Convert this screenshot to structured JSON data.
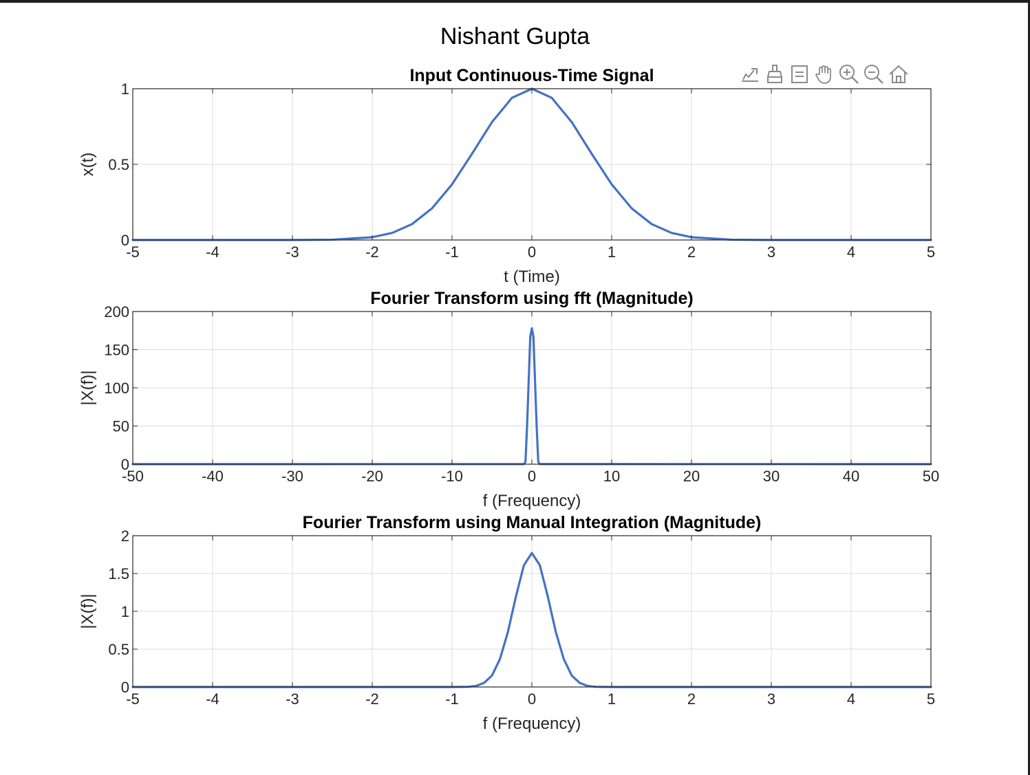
{
  "figure": {
    "title": "Nishant Gupta"
  },
  "toolbar": {
    "items": [
      {
        "name": "export",
        "icon": "export-icon"
      },
      {
        "name": "brush",
        "icon": "brush-icon"
      },
      {
        "name": "data-tips",
        "icon": "datatip-icon"
      },
      {
        "name": "pan",
        "icon": "pan-hand-icon"
      },
      {
        "name": "zoom-in",
        "icon": "zoom-in-icon"
      },
      {
        "name": "zoom-out",
        "icon": "zoom-out-icon"
      },
      {
        "name": "restore-view",
        "icon": "home-icon"
      }
    ]
  },
  "colors": {
    "line": "#4472c4",
    "grid": "#dcdcdc",
    "axes": "#262626"
  },
  "chart_data": [
    {
      "type": "line",
      "title": "Input Continuous-Time Signal",
      "xlabel": "t (Time)",
      "ylabel": "x(t)",
      "xlim": [
        -5,
        5
      ],
      "ylim": [
        0,
        1
      ],
      "xticks": [
        -5,
        -4,
        -3,
        -2,
        -1,
        0,
        1,
        2,
        3,
        4,
        5
      ],
      "yticks": [
        0,
        0.5,
        1
      ],
      "grid": true,
      "series": [
        {
          "x": [
            -5,
            -4,
            -3,
            -2.5,
            -2,
            -1.75,
            -1.5,
            -1.25,
            -1,
            -0.75,
            -0.5,
            -0.25,
            0,
            0.25,
            0.5,
            0.75,
            1,
            1.25,
            1.5,
            1.75,
            2,
            2.5,
            3,
            4,
            5
          ],
          "y": [
            0,
            0,
            0.0001,
            0.0019,
            0.0183,
            0.0468,
            0.1054,
            0.2096,
            0.3679,
            0.5698,
            0.7788,
            0.9394,
            1,
            0.9394,
            0.7788,
            0.5698,
            0.3679,
            0.2096,
            0.1054,
            0.0468,
            0.0183,
            0.0019,
            0.0001,
            0,
            0
          ]
        }
      ]
    },
    {
      "type": "line",
      "title": "Fourier Transform using fft (Magnitude)",
      "xlabel": "f (Frequency)",
      "ylabel": "|X(f)|",
      "xlim": [
        -50,
        50
      ],
      "ylim": [
        0,
        200
      ],
      "xticks": [
        -50,
        -40,
        -30,
        -20,
        -10,
        0,
        10,
        20,
        30,
        40,
        50
      ],
      "yticks": [
        0,
        50,
        100,
        150,
        200
      ],
      "grid": true,
      "series": [
        {
          "x": [
            -50,
            -1,
            -0.8,
            -0.6,
            -0.4,
            -0.2,
            0,
            0.2,
            0.4,
            0.6,
            0.8,
            1,
            50
          ],
          "y": [
            0,
            0.1,
            3.0,
            50,
            108,
            167,
            178,
            167,
            108,
            50,
            3.0,
            0.1,
            0
          ]
        }
      ]
    },
    {
      "type": "line",
      "title": "Fourier Transform using Manual Integration (Magnitude)",
      "xlabel": "f (Frequency)",
      "ylabel": "|X(f)|",
      "xlim": [
        -5,
        5
      ],
      "ylim": [
        0,
        2
      ],
      "xticks": [
        -5,
        -4,
        -3,
        -2,
        -1,
        0,
        1,
        2,
        3,
        4,
        5
      ],
      "yticks": [
        0,
        0.5,
        1,
        1.5,
        2
      ],
      "grid": true,
      "series": [
        {
          "x": [
            -5,
            -1,
            -0.8,
            -0.7,
            -0.6,
            -0.5,
            -0.4,
            -0.3,
            -0.2,
            -0.1,
            0,
            0.1,
            0.2,
            0.3,
            0.4,
            0.5,
            0.6,
            0.7,
            0.8,
            1,
            5
          ],
          "y": [
            0,
            0,
            0.003,
            0.014,
            0.053,
            0.151,
            0.369,
            0.727,
            1.195,
            1.609,
            1.772,
            1.609,
            1.195,
            0.727,
            0.369,
            0.151,
            0.053,
            0.014,
            0.003,
            0,
            0
          ]
        }
      ]
    }
  ]
}
